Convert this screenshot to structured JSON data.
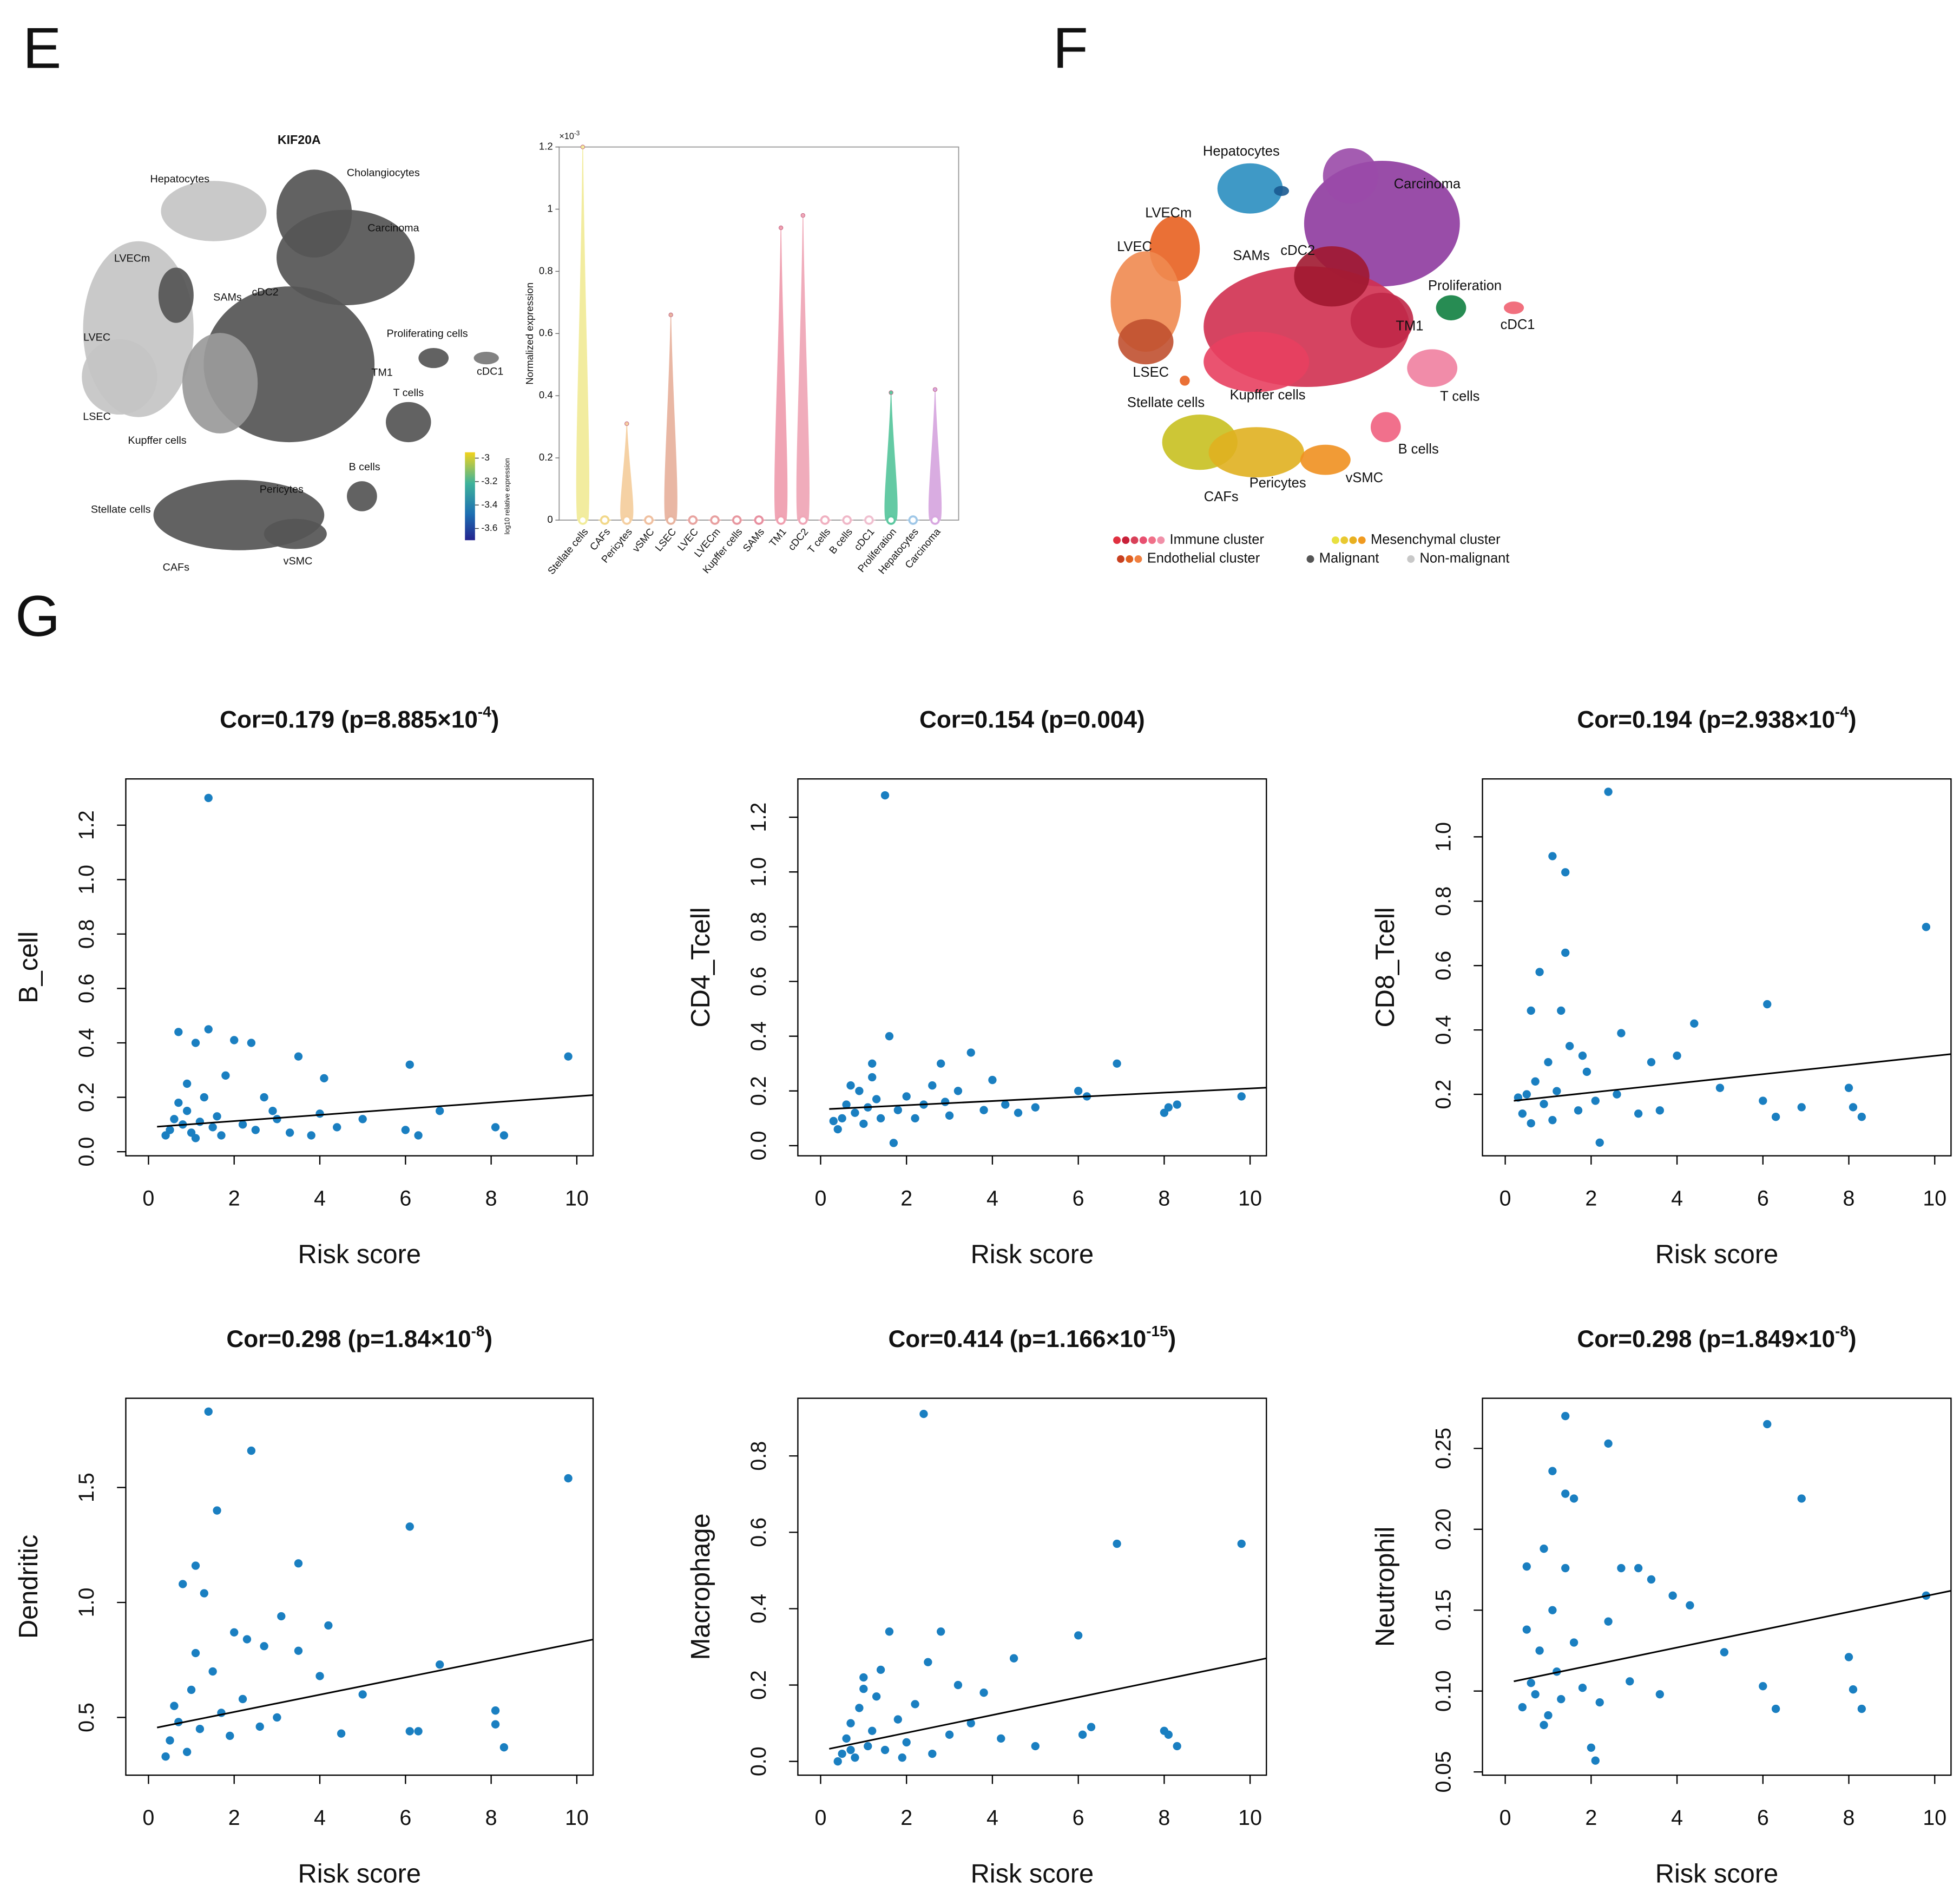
{
  "panel_labels": [
    "E",
    "F",
    "G"
  ],
  "umap_expression": {
    "title": "KIF20A",
    "labels": [
      "Hepatocytes",
      "Cholangiocytes",
      "Carcinoma",
      "LVECm",
      "SAMs",
      "cDC2",
      "LVEC",
      "Proliferating cells",
      "cDC1",
      "TM1",
      "T cells",
      "LSEC",
      "Kupffer cells",
      "B cells",
      "Pericytes",
      "Stellate cells",
      "CAFs",
      "vSMC"
    ],
    "colorbar": {
      "label": "log10 relative expression",
      "lim": [
        -3.7,
        -2.95
      ],
      "ticks": [
        -3,
        -3.2,
        -3.4,
        -3.6
      ]
    }
  },
  "umap_clusters": {
    "labels": [
      "Hepatocytes",
      "Carcinoma",
      "LVECm",
      "LVEC",
      "SAMs",
      "cDC2",
      "Proliferation",
      "cDC1",
      "TM1",
      "LSEC",
      "Stellate cells",
      "Kupffer cells",
      "T cells",
      "B cells",
      "Pericytes",
      "vSMC",
      "CAFs"
    ],
    "legend": [
      {
        "name": "Immune cluster",
        "colors": [
          "#e03040",
          "#c82038",
          "#d84058",
          "#e85070",
          "#f07088",
          "#f090a8"
        ]
      },
      {
        "name": "Mesenchymal cluster",
        "colors": [
          "#e8e040",
          "#e8c830",
          "#e8b020",
          "#f09a20"
        ]
      },
      {
        "name": "Endothelial cluster",
        "colors": [
          "#c84020",
          "#e06020",
          "#f08040"
        ]
      },
      {
        "name": "Malignant",
        "colors": [
          "#555555"
        ]
      },
      {
        "name": "Non-malignant",
        "colors": [
          "#c8c8c8"
        ]
      }
    ]
  },
  "chart_data": [
    {
      "type": "violin",
      "ylabel": "Normalized expression",
      "y_multiplier": "×10",
      "y_multiplier_exponent": "-3",
      "categories": [
        "Stellate cells",
        "CAFs",
        "Pericytes",
        "vSMC",
        "LSEC",
        "LVEC",
        "LVECm",
        "Kupffer cells",
        "SAMs",
        "TM1",
        "cDC2",
        "T cells",
        "B cells",
        "cDC1",
        "Proliferation",
        "Hepatocytes",
        "Carcinoma"
      ],
      "values": [
        1.2,
        0,
        0.31,
        0,
        0.66,
        0,
        0,
        0,
        0,
        0.94,
        0.98,
        0,
        0,
        0,
        0.41,
        0,
        0.42
      ],
      "colors": [
        "#f2ec9a",
        "#f2d88a",
        "#f5cfa0",
        "#f0c0a0",
        "#e8b4a0",
        "#e8a4a0",
        "#e8a0a0",
        "#e898a0",
        "#e890a0",
        "#f0a0b0",
        "#f0a8b8",
        "#f0b0c0",
        "#f0b8c8",
        "#f0c0d0",
        "#5cc8a0",
        "#a0c8e8",
        "#d8a8e0"
      ],
      "ylim": [
        0,
        1.2
      ],
      "yticks": [
        0,
        0.2,
        0.4,
        0.6,
        0.8,
        1,
        1.2
      ]
    },
    {
      "type": "scatter",
      "title": "Cor=0.179 (p=8.885×10",
      "title_superscript": "-4",
      "title_suffix": ")",
      "xlabel": "Risk score",
      "ylabel": "B_cell",
      "color": "#1a7fc1",
      "x": [
        1.4,
        0.7,
        1.4,
        1.1,
        2.0,
        2.4,
        3.5,
        9.8,
        6.1,
        4.1,
        1.8,
        6.8,
        8.1,
        8.3,
        6.3,
        6.0,
        5.0,
        4.0,
        3.0,
        2.7,
        2.2,
        0.5,
        0.6,
        0.8,
        0.9,
        1.0,
        1.2,
        1.3,
        1.5,
        1.6,
        0.4,
        0.7,
        1.1,
        2.5,
        3.3,
        3.8,
        4.4,
        0.9,
        1.7,
        2.9
      ],
      "values": [
        1.3,
        0.44,
        0.45,
        0.4,
        0.41,
        0.4,
        0.35,
        0.35,
        0.32,
        0.27,
        0.28,
        0.15,
        0.09,
        0.06,
        0.06,
        0.08,
        0.12,
        0.14,
        0.12,
        0.2,
        0.1,
        0.08,
        0.12,
        0.1,
        0.15,
        0.07,
        0.11,
        0.2,
        0.09,
        0.13,
        0.06,
        0.18,
        0.05,
        0.08,
        0.07,
        0.06,
        0.09,
        0.25,
        0.06,
        0.15
      ],
      "fit": {
        "x": [
          0.2,
          10.38
        ],
        "y": [
          0.092,
          0.208
        ]
      },
      "xlim": [
        -0.53,
        10.38
      ],
      "ylim": [
        -0.015,
        1.37
      ],
      "xticks": [
        0,
        2,
        4,
        6,
        8,
        10
      ],
      "yticks": [
        {
          "value": 0,
          "label": "0.0"
        },
        0.2,
        0.4,
        0.6,
        0.8,
        {
          "value": 1,
          "label": "1.0"
        },
        1.2
      ]
    },
    {
      "type": "scatter",
      "title": "Cor=0.154 (p=0.004)",
      "xlabel": "Risk score",
      "ylabel": "CD4_Tcell",
      "color": "#1a7fc1",
      "x": [
        1.5,
        1.6,
        3.5,
        6.9,
        2.8,
        1.2,
        4.0,
        6.0,
        9.8,
        8.1,
        8.3,
        8.0,
        5.0,
        4.3,
        3.2,
        2.6,
        2.0,
        1.7,
        0.5,
        0.6,
        0.8,
        0.9,
        1.0,
        1.1,
        1.3,
        1.4,
        0.4,
        0.7,
        1.8,
        2.2,
        2.4,
        3.0,
        3.8,
        4.6,
        6.2,
        1.2,
        0.3,
        2.9
      ],
      "values": [
        1.28,
        0.4,
        0.34,
        0.3,
        0.3,
        0.3,
        0.24,
        0.2,
        0.18,
        0.14,
        0.15,
        0.12,
        0.14,
        0.15,
        0.2,
        0.22,
        0.18,
        0.01,
        0.1,
        0.15,
        0.12,
        0.2,
        0.08,
        0.14,
        0.17,
        0.1,
        0.06,
        0.22,
        0.13,
        0.1,
        0.15,
        0.11,
        0.13,
        0.12,
        0.18,
        0.25,
        0.09,
        0.16
      ],
      "fit": {
        "x": [
          0.2,
          10.38
        ],
        "y": [
          0.134,
          0.212
        ]
      },
      "xlim": [
        -0.53,
        10.38
      ],
      "ylim": [
        -0.037,
        1.34
      ],
      "xticks": [
        0,
        2,
        4,
        6,
        8,
        10
      ],
      "yticks": [
        {
          "value": 0,
          "label": "0.0"
        },
        0.2,
        0.4,
        0.6,
        0.8,
        {
          "value": 1,
          "label": "1.0"
        },
        1.2
      ]
    },
    {
      "type": "scatter",
      "title": "Cor=0.194 (p=2.938×10",
      "title_superscript": "-4",
      "title_suffix": ")",
      "xlabel": "Risk score",
      "ylabel": "CD8_Tcell",
      "color": "#1a7fc1",
      "x": [
        2.4,
        1.1,
        1.4,
        9.8,
        1.4,
        0.8,
        6.1,
        1.3,
        0.6,
        4.4,
        2.7,
        3.4,
        4.0,
        5.0,
        6.0,
        6.3,
        6.9,
        8.0,
        8.1,
        8.3,
        2.2,
        0.4,
        0.5,
        0.7,
        0.9,
        1.0,
        1.2,
        1.5,
        1.7,
        1.9,
        2.1,
        2.6,
        3.1,
        3.6,
        1.1,
        0.6,
        0.3,
        1.8
      ],
      "values": [
        1.14,
        0.94,
        0.89,
        0.72,
        0.64,
        0.58,
        0.48,
        0.46,
        0.46,
        0.42,
        0.39,
        0.3,
        0.32,
        0.22,
        0.18,
        0.13,
        0.16,
        0.22,
        0.16,
        0.13,
        0.05,
        0.14,
        0.2,
        0.24,
        0.17,
        0.3,
        0.21,
        0.35,
        0.15,
        0.27,
        0.18,
        0.2,
        0.14,
        0.15,
        0.12,
        0.11,
        0.19,
        0.32
      ],
      "fit": {
        "x": [
          0.2,
          10.38
        ],
        "y": [
          0.18,
          0.325
        ]
      },
      "xlim": [
        -0.53,
        10.38
      ],
      "ylim": [
        0.009,
        1.18
      ],
      "xticks": [
        0,
        2,
        4,
        6,
        8,
        10
      ],
      "yticks": [
        0.2,
        0.4,
        0.6,
        0.8,
        {
          "value": 1,
          "label": "1.0"
        }
      ]
    },
    {
      "type": "scatter",
      "title": "Cor=0.298 (p=1.84×10",
      "title_superscript": "-8",
      "title_suffix": ")",
      "xlabel": "Risk score",
      "ylabel": "Dendritic",
      "color": "#1a7fc1",
      "x": [
        1.4,
        2.4,
        9.8,
        1.6,
        6.1,
        1.1,
        3.5,
        1.3,
        0.8,
        3.1,
        4.2,
        2.0,
        2.3,
        2.7,
        3.5,
        6.8,
        4.0,
        5.0,
        6.1,
        6.3,
        8.1,
        8.1,
        8.3,
        4.5,
        0.5,
        0.6,
        0.7,
        0.9,
        1.0,
        1.2,
        1.5,
        1.7,
        1.9,
        2.2,
        2.6,
        0.4,
        1.1,
        3.0
      ],
      "values": [
        1.83,
        1.66,
        1.54,
        1.4,
        1.33,
        1.16,
        1.17,
        1.04,
        1.08,
        0.94,
        0.9,
        0.87,
        0.84,
        0.81,
        0.79,
        0.73,
        0.68,
        0.6,
        0.44,
        0.44,
        0.53,
        0.47,
        0.37,
        0.43,
        0.4,
        0.55,
        0.48,
        0.35,
        0.62,
        0.45,
        0.7,
        0.52,
        0.42,
        0.58,
        0.46,
        0.33,
        0.78,
        0.5
      ],
      "fit": {
        "x": [
          0.2,
          10.38
        ],
        "y": [
          0.456,
          0.839
        ]
      },
      "xlim": [
        -0.53,
        10.38
      ],
      "ylim": [
        0.249,
        1.888
      ],
      "xticks": [
        0,
        2,
        4,
        6,
        8,
        10
      ],
      "yticks": [
        0.5,
        {
          "value": 1,
          "label": "1.0"
        },
        1.5
      ]
    },
    {
      "type": "scatter",
      "title": "Cor=0.414 (p=1.166×10",
      "title_superscript": "-15",
      "title_suffix": ")",
      "xlabel": "Risk score",
      "ylabel": "Macrophage",
      "color": "#1a7fc1",
      "x": [
        2.4,
        6.9,
        9.8,
        1.6,
        2.8,
        6.0,
        2.5,
        4.5,
        1.4,
        1.0,
        3.2,
        3.8,
        6.3,
        6.1,
        8.0,
        8.1,
        8.3,
        5.0,
        4.2,
        3.5,
        0.5,
        0.6,
        0.7,
        0.8,
        0.9,
        1.1,
        1.2,
        1.3,
        1.5,
        1.8,
        2.0,
        2.2,
        2.6,
        0.4,
        1.0,
        3.0,
        0.7,
        1.9
      ],
      "values": [
        0.91,
        0.57,
        0.57,
        0.34,
        0.34,
        0.33,
        0.26,
        0.27,
        0.24,
        0.22,
        0.2,
        0.18,
        0.09,
        0.07,
        0.08,
        0.07,
        0.04,
        0.04,
        0.06,
        0.1,
        0.02,
        0.06,
        0.1,
        0.01,
        0.14,
        0.04,
        0.08,
        0.17,
        0.03,
        0.11,
        0.05,
        0.15,
        0.02,
        0.0,
        0.19,
        0.07,
        0.03,
        0.01
      ],
      "fit": {
        "x": [
          0.2,
          10.38
        ],
        "y": [
          0.033,
          0.27
        ]
      },
      "xlim": [
        -0.53,
        10.38
      ],
      "ylim": [
        -0.036,
        0.951
      ],
      "xticks": [
        0,
        2,
        4,
        6,
        8,
        10
      ],
      "yticks": [
        {
          "value": 0,
          "label": "0.0"
        },
        0.2,
        0.4,
        0.6,
        0.8
      ]
    },
    {
      "type": "scatter",
      "title": "Cor=0.298 (p=1.849×10",
      "title_superscript": "-8",
      "title_suffix": ")",
      "xlabel": "Risk score",
      "ylabel": "Neutrophil",
      "color": "#1a7fc1",
      "x": [
        1.4,
        6.1,
        2.4,
        1.1,
        1.4,
        1.6,
        6.9,
        0.9,
        1.4,
        0.5,
        2.7,
        3.1,
        3.4,
        3.9,
        9.8,
        4.3,
        2.4,
        5.1,
        8.0,
        6.0,
        8.1,
        6.3,
        8.3,
        2.0,
        2.1,
        0.4,
        0.6,
        0.7,
        0.8,
        1.0,
        1.2,
        1.3,
        1.6,
        1.8,
        2.2,
        2.9,
        3.6,
        0.9,
        0.5,
        1.1
      ],
      "values": [
        0.27,
        0.265,
        0.253,
        0.236,
        0.222,
        0.219,
        0.219,
        0.188,
        0.176,
        0.177,
        0.176,
        0.176,
        0.169,
        0.159,
        0.159,
        0.153,
        0.143,
        0.124,
        0.121,
        0.103,
        0.101,
        0.089,
        0.089,
        0.065,
        0.057,
        0.09,
        0.105,
        0.098,
        0.125,
        0.085,
        0.112,
        0.095,
        0.13,
        0.102,
        0.093,
        0.106,
        0.098,
        0.079,
        0.138,
        0.15
      ],
      "fit": {
        "x": [
          0.2,
          10.38
        ],
        "y": [
          0.106,
          0.162
        ]
      },
      "xlim": [
        -0.53,
        10.38
      ],
      "ylim": [
        0.048,
        0.281
      ],
      "xticks": [
        0,
        2,
        4,
        6,
        8,
        10
      ],
      "yticks": [
        0.05,
        {
          "value": 0.1,
          "label": "0.10"
        },
        0.15,
        {
          "value": 0.2,
          "label": "0.20"
        },
        0.25
      ]
    }
  ]
}
